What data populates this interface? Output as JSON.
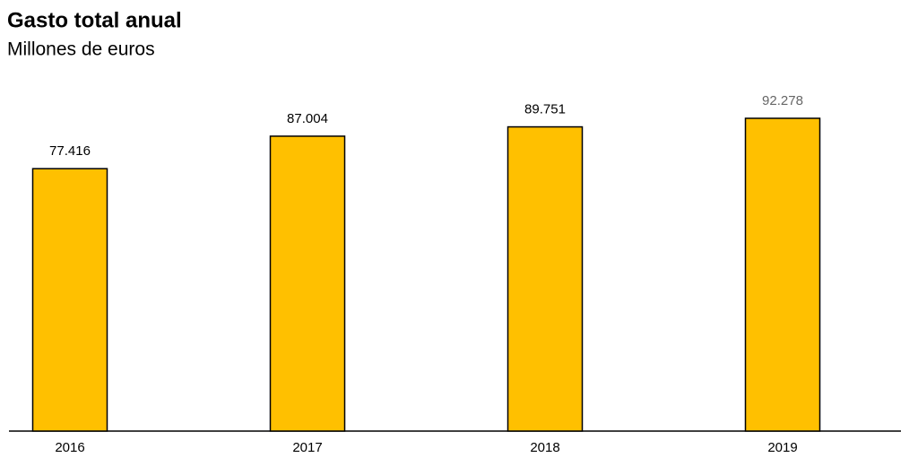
{
  "chart_data": {
    "type": "bar",
    "title": "Gasto total anual",
    "subtitle": "Millones de euros",
    "categories": [
      "2016",
      "2017",
      "2018",
      "2019"
    ],
    "values": [
      77416,
      87004,
      89751,
      92278
    ],
    "value_labels": [
      "77.416",
      "87.004",
      "89.751",
      "92.278"
    ],
    "color": "#ffc000"
  }
}
